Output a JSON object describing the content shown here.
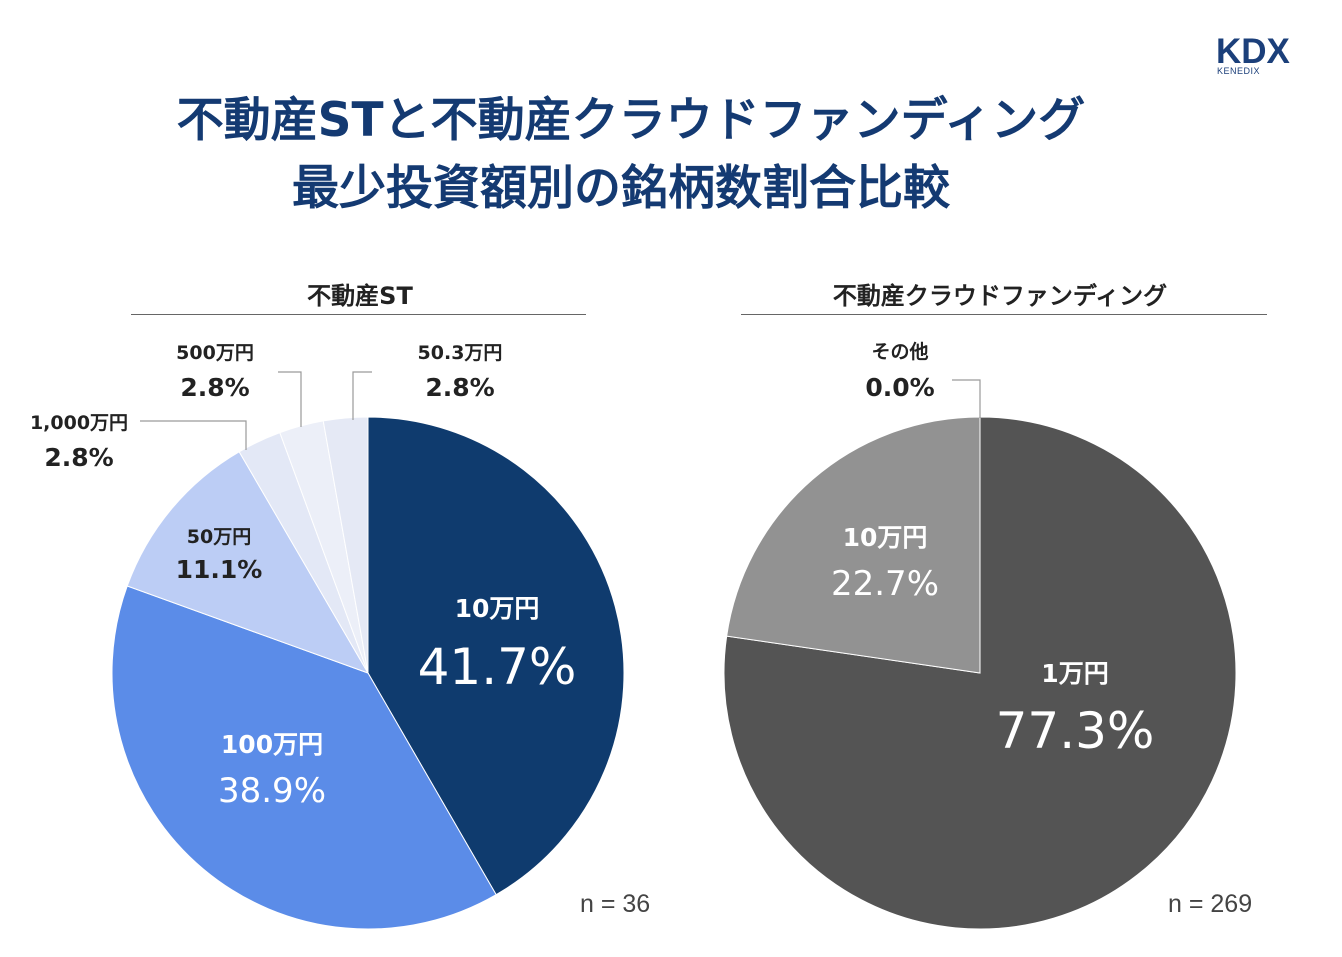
{
  "logo": {
    "main": "KDX",
    "sub": "KENEDIX"
  },
  "title": {
    "line1": "不動産STと不動産クラウドファンディング",
    "line2": "最少投資額別の銘柄数割合比較"
  },
  "chart_data": [
    {
      "type": "pie",
      "title": "不動産ST",
      "n_label": "n = 36",
      "slices": [
        {
          "label": "10万円",
          "value_label": "41.7%",
          "value": 41.7,
          "color": "#0f3b6e"
        },
        {
          "label": "100万円",
          "value_label": "38.9%",
          "value": 38.9,
          "color": "#5b8ce8"
        },
        {
          "label": "50万円",
          "value_label": "11.1%",
          "value": 11.1,
          "color": "#bccdf5"
        },
        {
          "label": "1,000万円",
          "value_label": "2.8%",
          "value": 2.8,
          "color": "#e3e8f6"
        },
        {
          "label": "500万円",
          "value_label": "2.8%",
          "value": 2.8,
          "color": "#eceff8"
        },
        {
          "label": "50.3万円",
          "value_label": "2.8%",
          "value": 2.8,
          "color": "#e5e9f5"
        }
      ]
    },
    {
      "type": "pie",
      "title": "不動産クラウドファンディング",
      "n_label": "n = 269",
      "slices": [
        {
          "label": "1万円",
          "value_label": "77.3%",
          "value": 77.3,
          "color": "#545454"
        },
        {
          "label": "10万円",
          "value_label": "22.7%",
          "value": 22.7,
          "color": "#929292"
        },
        {
          "label": "その他",
          "value_label": "0.0%",
          "value": 0.0,
          "color": "#bdbdbd"
        }
      ]
    }
  ]
}
